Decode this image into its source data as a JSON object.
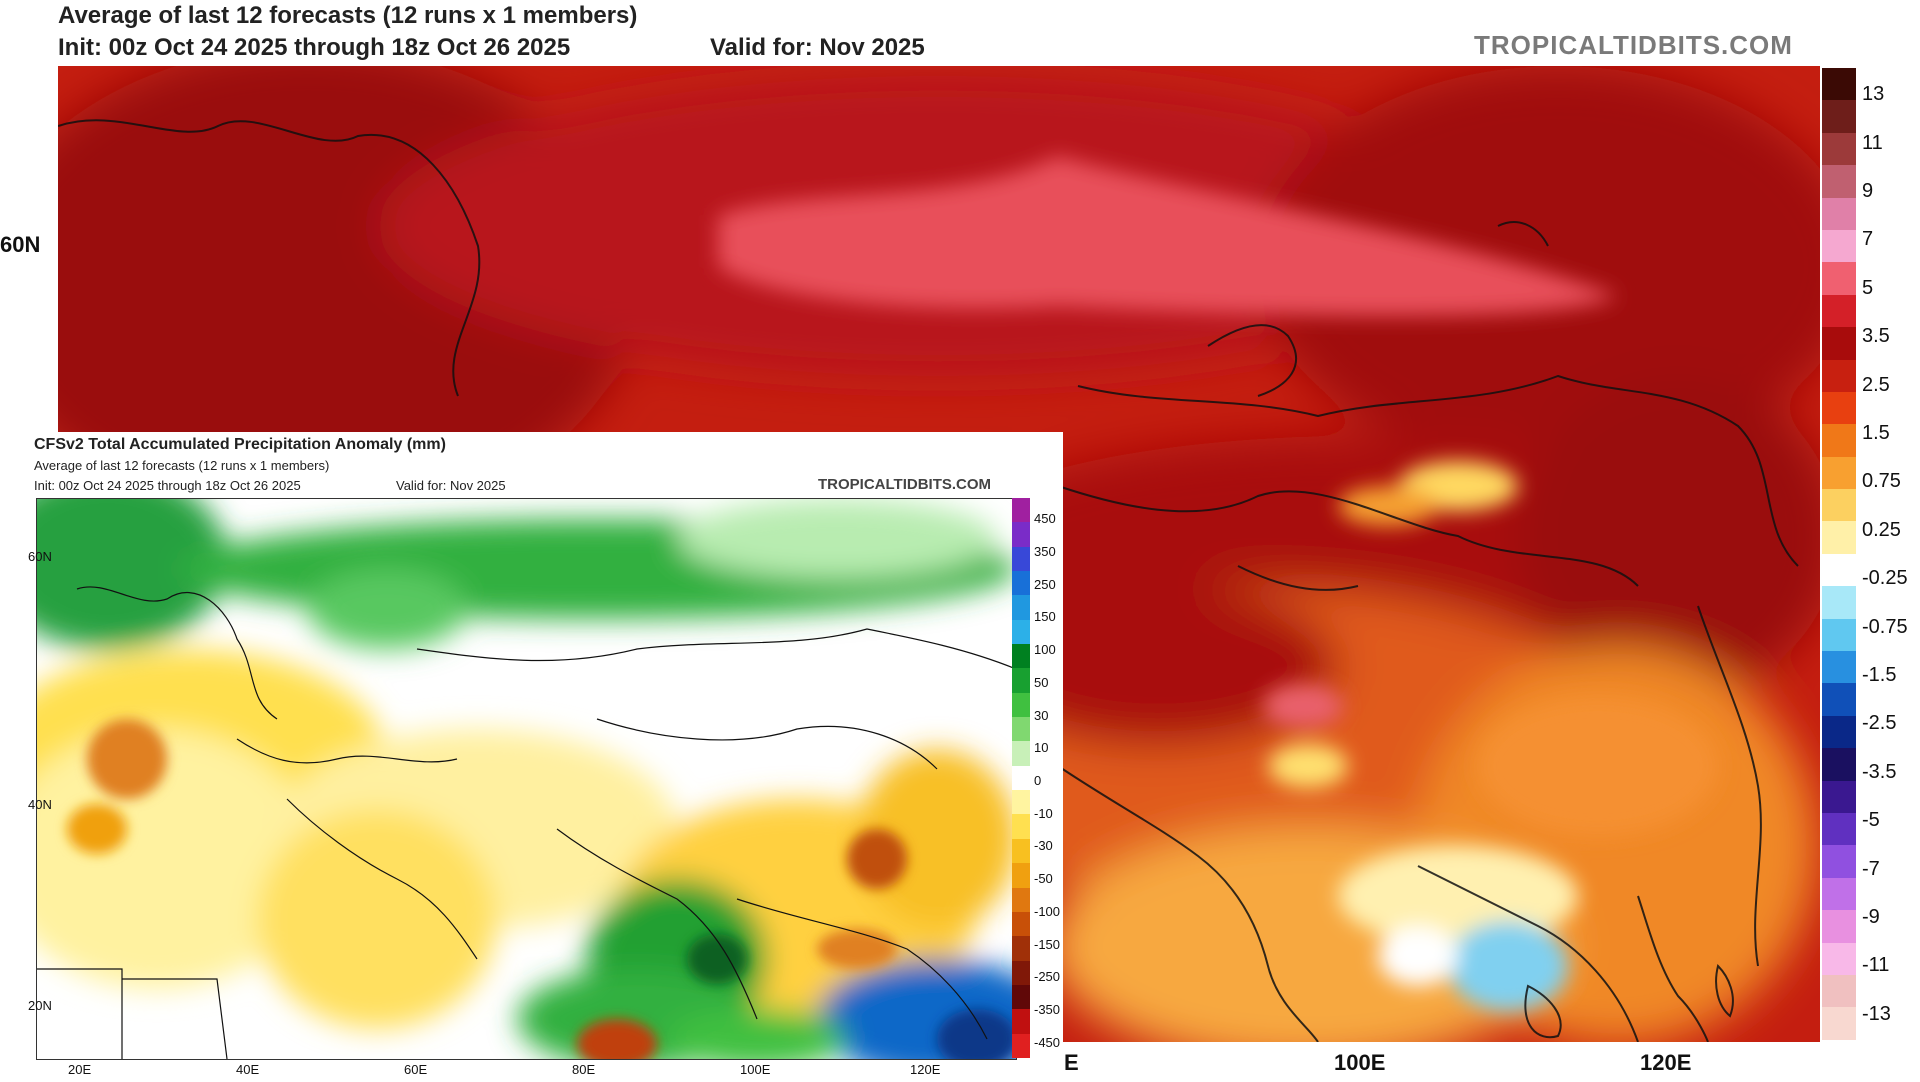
{
  "main": {
    "title_line1": "Average of last 12 forecasts (12 runs x 1 members)",
    "title_line2_init": "Init: 00z Oct 24 2025 through 18z Oct 26 2025",
    "title_line2_valid": "Valid for: Nov 2025",
    "brand": "TROPICALTIDBITS.COM",
    "lat_labels": [
      "60N"
    ],
    "lon_labels": [
      "E",
      "100E",
      "120E"
    ],
    "colorbar": {
      "labels": [
        "13",
        "11",
        "9",
        "7",
        "5",
        "3.5",
        "2.5",
        "1.5",
        "0.75",
        "0.25",
        "-0.25",
        "-0.75",
        "-1.5",
        "-2.5",
        "-3.5",
        "-5",
        "-7",
        "-9",
        "-11",
        "-13"
      ],
      "colors": [
        "#3b0a05",
        "#6e1e1a",
        "#9c3a3a",
        "#c06070",
        "#e080a8",
        "#f5a8d0",
        "#f06070",
        "#d42028",
        "#a80c0c",
        "#c82010",
        "#e84010",
        "#f07818",
        "#f8a030",
        "#fcd060",
        "#fff0a8",
        "#ffffff",
        "#a8e8f8",
        "#60c8f0",
        "#2890e0",
        "#1050b8",
        "#0a2888",
        "#1a1060",
        "#3a1890",
        "#6030c0",
        "#9050e0",
        "#c070e8",
        "#e890e0",
        "#f8b8e8",
        "#f0c0c0",
        "#f8d8d0"
      ]
    }
  },
  "inset": {
    "title": "CFSv2 Total Accumulated Precipitation Anomaly (mm)",
    "subtitle": "Average of last 12 forecasts (12 runs x 1 members)",
    "init": "Init: 00z Oct 24 2025 through 18z Oct 26 2025",
    "valid": "Valid for: Nov 2025",
    "brand": "TROPICALTIDBITS.COM",
    "lat_labels": [
      "60N",
      "40N",
      "20N"
    ],
    "lon_labels": [
      "20E",
      "40E",
      "60E",
      "80E",
      "100E",
      "120E"
    ],
    "colorbar": {
      "labels": [
        "450",
        "350",
        "250",
        "150",
        "100",
        "50",
        "30",
        "10",
        "0",
        "-10",
        "-30",
        "-50",
        "-100",
        "-150",
        "-250",
        "-350",
        "-450"
      ],
      "colors": [
        "#a020a0",
        "#7a2cc8",
        "#3848d8",
        "#1870d8",
        "#2098e0",
        "#2cb0e8",
        "#008020",
        "#18a030",
        "#40c040",
        "#80d870",
        "#c8f0b8",
        "#ffffff",
        "#fff4a0",
        "#ffe050",
        "#f8c020",
        "#f0a010",
        "#e07810",
        "#c85008",
        "#a03008",
        "#801808",
        "#600808",
        "#c01010",
        "#e02020"
      ]
    }
  }
}
